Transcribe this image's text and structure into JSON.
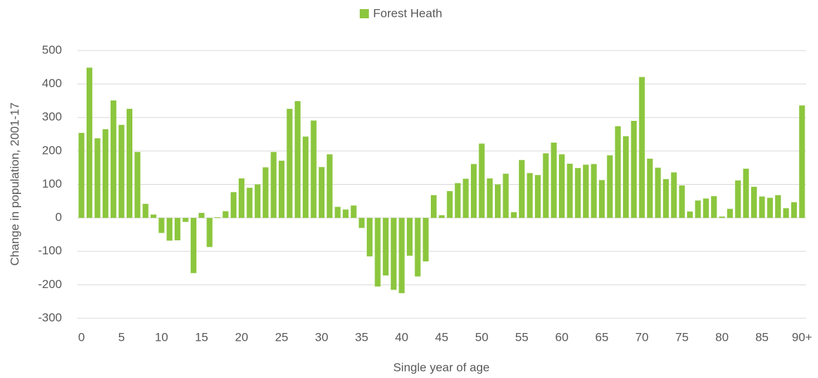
{
  "chart_data": {
    "type": "bar",
    "legend": "Forest Heath",
    "x_label": "Single year of age",
    "y_label": "Change in population, 2001-17",
    "color": "#8cc63e",
    "categories": [
      "0",
      null,
      null,
      null,
      null,
      "5",
      null,
      null,
      null,
      null,
      "10",
      null,
      null,
      null,
      null,
      "15",
      null,
      null,
      null,
      null,
      "20",
      null,
      null,
      null,
      null,
      "25",
      null,
      null,
      null,
      null,
      "30",
      null,
      null,
      null,
      null,
      "35",
      null,
      null,
      null,
      null,
      "40",
      null,
      null,
      null,
      null,
      "45",
      null,
      null,
      null,
      null,
      "50",
      null,
      null,
      null,
      null,
      "55",
      null,
      null,
      null,
      null,
      "60",
      null,
      null,
      null,
      null,
      "65",
      null,
      null,
      null,
      null,
      "70",
      null,
      null,
      null,
      null,
      "75",
      null,
      null,
      null,
      null,
      "80",
      null,
      null,
      null,
      null,
      "85",
      null,
      null,
      null,
      null,
      "90+"
    ],
    "values": [
      254,
      449,
      238,
      265,
      351,
      278,
      326,
      197,
      42,
      10,
      -45,
      -68,
      -67,
      -12,
      -165,
      15,
      -87,
      2,
      20,
      77,
      118,
      90,
      100,
      151,
      197,
      171,
      326,
      349,
      243,
      291,
      152,
      190,
      33,
      25,
      37,
      -30,
      -115,
      -205,
      -172,
      -215,
      -225,
      -113,
      -175,
      -130,
      68,
      8,
      80,
      104,
      117,
      161,
      222,
      118,
      100,
      132,
      17,
      173,
      134,
      128,
      193,
      225,
      190,
      162,
      149,
      159,
      161,
      113,
      187,
      274,
      244,
      290,
      421,
      177,
      150,
      116,
      136,
      97,
      19,
      52,
      58,
      65,
      4,
      27,
      112,
      147,
      93,
      64,
      60,
      68,
      29,
      47,
      336
    ],
    "ylim": [
      -300,
      500
    ],
    "yticks": [
      -300,
      -200,
      -100,
      0,
      100,
      200,
      300,
      400,
      500
    ],
    "grid": true
  }
}
